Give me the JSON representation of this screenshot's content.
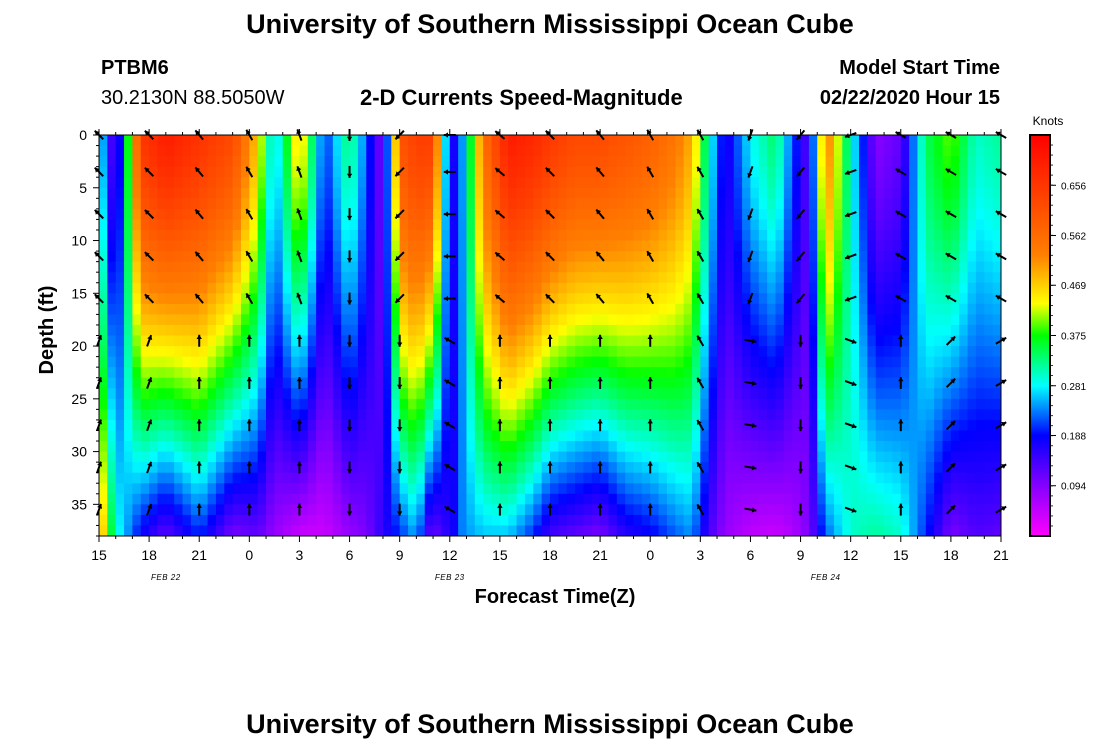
{
  "page": {
    "title_top": "University of Southern Mississippi Ocean Cube",
    "title_bottom": "University of Southern Mississippi Ocean Cube",
    "station_id": "PTBM6",
    "station_coords": "30.2130N 88.5050W",
    "subtitle": "2-D Currents Speed-Magnitude",
    "model_start_label": "Model Start Time",
    "model_start_value": "02/22/2020 Hour 15"
  },
  "chart_data": {
    "type": "heatmap",
    "title": "2-D Currents Speed-Magnitude",
    "xlabel": "Forecast Time(Z)",
    "ylabel": "Depth (ft)",
    "x_ticks": [
      "15",
      "18",
      "21",
      "0",
      "3",
      "6",
      "9",
      "12",
      "15",
      "18",
      "21",
      "0",
      "3",
      "6",
      "9",
      "12",
      "15",
      "18",
      "21"
    ],
    "x_tick_hours": [
      0,
      3,
      6,
      9,
      12,
      15,
      18,
      21,
      24,
      27,
      30,
      33,
      36,
      39,
      42,
      45,
      48,
      51,
      54
    ],
    "x_range_hours": [
      0,
      54
    ],
    "date_labels": [
      {
        "text": "FEB  22",
        "hour": 4
      },
      {
        "text": "FEB  23",
        "hour": 21
      },
      {
        "text": "FEB  24",
        "hour": 43.5
      }
    ],
    "y_ticks": [
      0,
      5,
      10,
      15,
      20,
      25,
      30,
      35
    ],
    "y_range_ft": [
      0,
      38
    ],
    "colorbar": {
      "label": "Knots",
      "ticks": [
        0.094,
        0.188,
        0.281,
        0.375,
        0.469,
        0.562,
        0.656
      ],
      "range": [
        0,
        0.75
      ]
    },
    "speed_profile_hours": [
      0,
      1,
      2.5,
      4,
      6,
      8,
      9.5,
      10.5,
      12,
      13.5,
      15,
      16,
      17,
      18,
      19,
      20,
      20.5,
      21,
      21.8,
      23,
      24.5,
      26,
      27,
      28.5,
      30,
      31.5,
      33,
      34.5,
      35.5,
      36.5,
      37.5,
      39,
      40.5,
      41.5,
      42.5,
      43.5,
      45,
      46.5,
      48,
      49.5,
      51,
      52.5,
      54
    ],
    "speed_profile_surface_kn": [
      0.3,
      0.09,
      0.65,
      0.7,
      0.66,
      0.62,
      0.47,
      0.25,
      0.48,
      0.2,
      0.34,
      0.22,
      0.09,
      0.6,
      0.64,
      0.64,
      0.4,
      0.14,
      0.25,
      0.55,
      0.7,
      0.68,
      0.65,
      0.62,
      0.62,
      0.6,
      0.58,
      0.54,
      0.49,
      0.3,
      0.16,
      0.28,
      0.34,
      0.22,
      0.12,
      0.55,
      0.3,
      0.09,
      0.12,
      0.34,
      0.4,
      0.3,
      0.32
    ],
    "speed_profile_bottom_kn": [
      0.52,
      0.3,
      0.18,
      0.12,
      0.2,
      0.1,
      0.12,
      0.08,
      0.04,
      0.04,
      0.08,
      0.1,
      0.16,
      0.2,
      0.25,
      0.09,
      0.16,
      0.15,
      0.24,
      0.26,
      0.26,
      0.2,
      0.14,
      0.12,
      0.1,
      0.16,
      0.18,
      0.22,
      0.24,
      0.14,
      0.08,
      0.05,
      0.04,
      0.06,
      0.1,
      0.22,
      0.3,
      0.32,
      0.3,
      0.2,
      0.1,
      0.13,
      0.12
    ],
    "arrow_depths_ft": [
      0,
      3.5,
      7.5,
      11.5,
      15.5,
      19.5,
      23.5,
      27.5,
      31.5,
      35.5
    ],
    "arrow_hours": [
      0,
      3,
      6,
      9,
      12,
      15,
      18,
      21,
      24,
      27,
      30,
      33,
      36,
      39,
      42,
      45,
      48,
      51,
      54
    ],
    "arrow_direction_deg_by_hour": [
      {
        "hour": 0,
        "dir_upper": 315,
        "dir_lower": 20
      },
      {
        "hour": 3,
        "dir_upper": 315,
        "dir_lower": 20
      },
      {
        "hour": 6,
        "dir_upper": 320,
        "dir_lower": 0
      },
      {
        "hour": 9,
        "dir_upper": 330,
        "dir_lower": 0
      },
      {
        "hour": 12,
        "dir_upper": 340,
        "dir_lower": 0
      },
      {
        "hour": 15,
        "dir_upper": 180,
        "dir_lower": 180
      },
      {
        "hour": 18,
        "dir_upper": 225,
        "dir_lower": 180
      },
      {
        "hour": 21,
        "dir_upper": 270,
        "dir_lower": 300
      },
      {
        "hour": 24,
        "dir_upper": 310,
        "dir_lower": 0
      },
      {
        "hour": 27,
        "dir_upper": 315,
        "dir_lower": 0
      },
      {
        "hour": 30,
        "dir_upper": 320,
        "dir_lower": 0
      },
      {
        "hour": 33,
        "dir_upper": 330,
        "dir_lower": 0
      },
      {
        "hour": 36,
        "dir_upper": 330,
        "dir_lower": 330
      },
      {
        "hour": 39,
        "dir_upper": 200,
        "dir_lower": 100
      },
      {
        "hour": 42,
        "dir_upper": 220,
        "dir_lower": 180
      },
      {
        "hour": 45,
        "dir_upper": 250,
        "dir_lower": 110
      },
      {
        "hour": 48,
        "dir_upper": 300,
        "dir_lower": 0
      },
      {
        "hour": 51,
        "dir_upper": 300,
        "dir_lower": 45
      },
      {
        "hour": 54,
        "dir_upper": 300,
        "dir_lower": 60
      }
    ]
  }
}
